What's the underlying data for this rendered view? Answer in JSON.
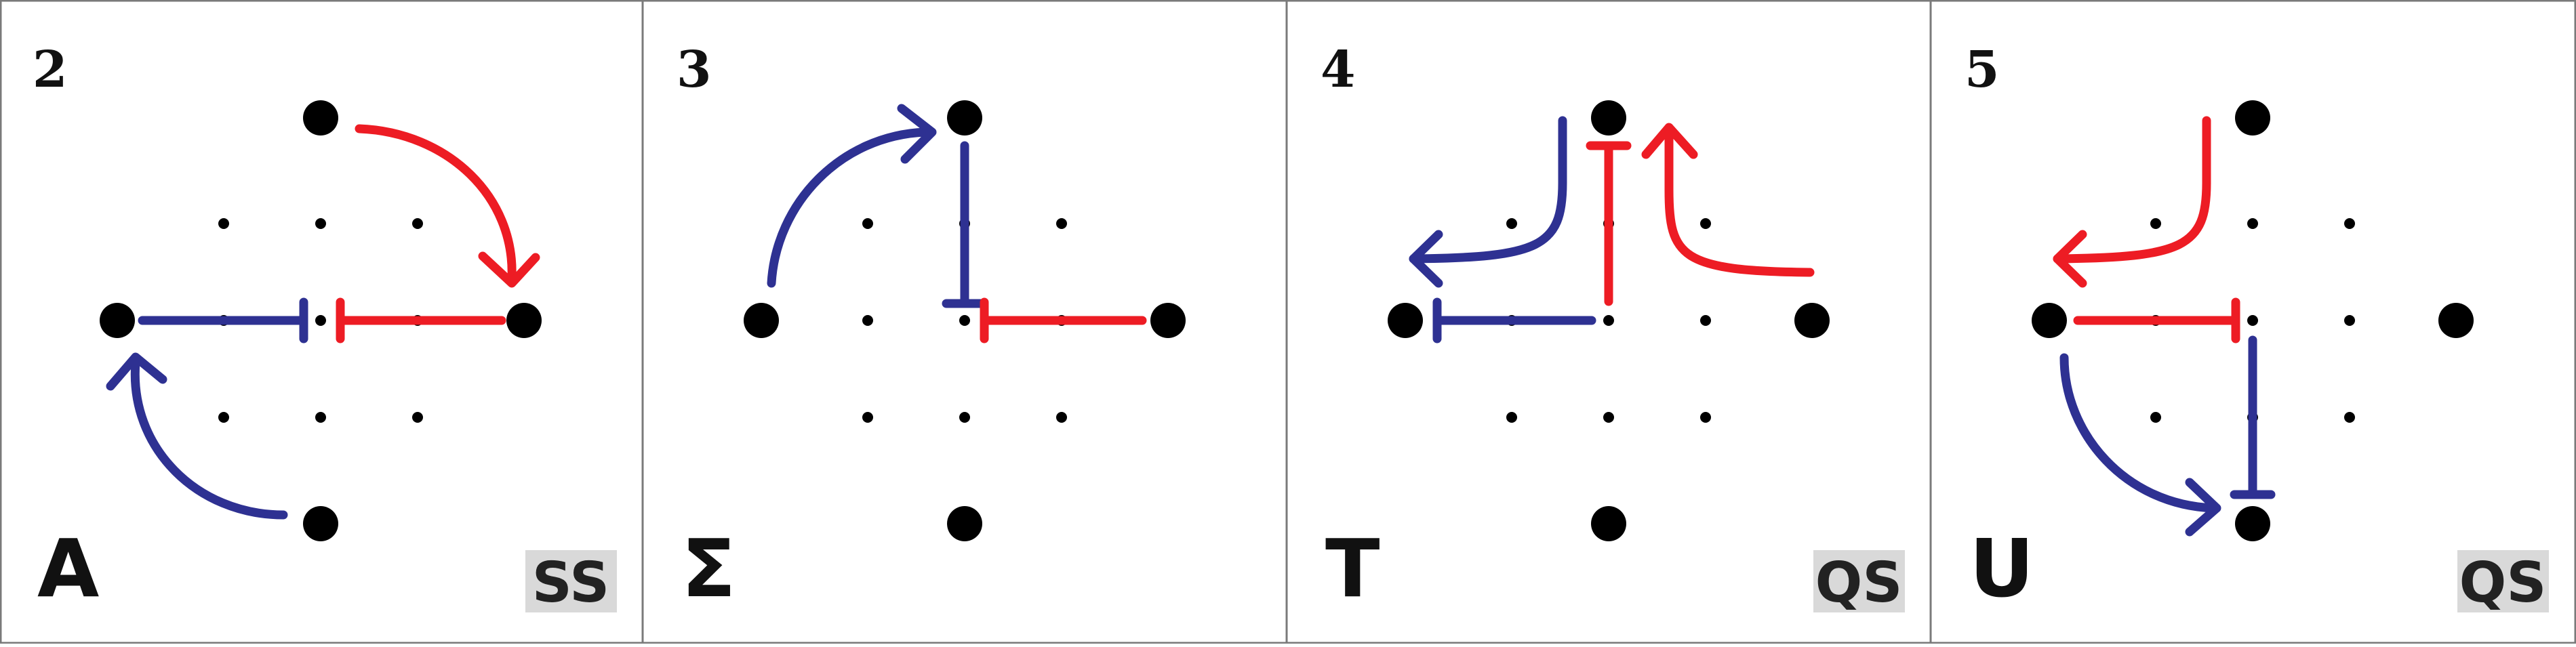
{
  "colors": {
    "background": "#ffffff",
    "border": "#7a7a7a",
    "dot": "#000000",
    "blue": "#2e3192",
    "red": "#ed1c24",
    "badge_bg": "#d9d9d9",
    "text": "#111111"
  },
  "panels": [
    {
      "number": "2",
      "letter": "A",
      "badge": "SS"
    },
    {
      "number": "3",
      "letter": "Σ",
      "badge": ""
    },
    {
      "number": "4",
      "letter": "T",
      "badge": "QS"
    },
    {
      "number": "5",
      "letter": "U",
      "badge": "QS"
    }
  ]
}
